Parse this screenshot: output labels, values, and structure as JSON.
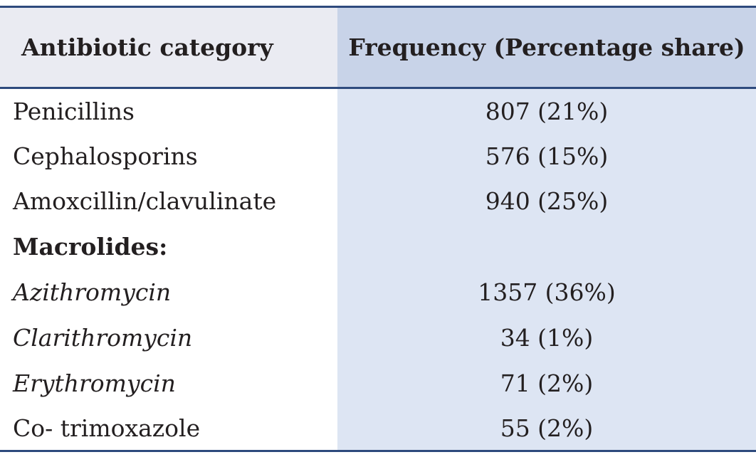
{
  "table": {
    "headers": {
      "category": "Antibiotic category",
      "frequency": "Frequency (Percentage share)"
    },
    "rows": [
      {
        "category": "Penicillins",
        "frequency": "807 (21%)",
        "style": "normal"
      },
      {
        "category": "Cephalosporins",
        "frequency": "576 (15%)",
        "style": "normal"
      },
      {
        "category": "Amoxcillin/clavulinate",
        "frequency": "940 (25%)",
        "style": "normal"
      },
      {
        "category": "Macrolides:",
        "frequency": "",
        "style": "bold"
      },
      {
        "category": "Azithromycin",
        "frequency": "1357 (36%)",
        "style": "italic"
      },
      {
        "category": "Clarithromycin",
        "frequency": "34 (1%)",
        "style": "italic"
      },
      {
        "category": "Erythromycin",
        "frequency": "71 (2%)",
        "style": "italic"
      },
      {
        "category": "Co- trimoxazole",
        "frequency": "55 (2%)",
        "style": "normal"
      }
    ]
  },
  "colors": {
    "rule": "#2e4a7d",
    "header_left_bg": "#eaebf2",
    "header_right_bg": "#c8d3e8",
    "body_right_bg": "#dde5f3"
  }
}
